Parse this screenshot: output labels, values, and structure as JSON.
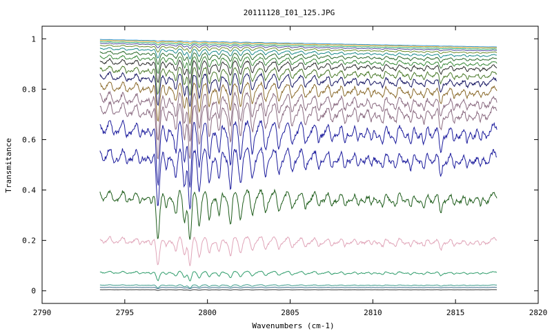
{
  "chart_data": {
    "type": "line",
    "title": "20111128_I01_125.JPG",
    "xlabel": "Wavenumbers (cm-1)",
    "ylabel": "Transmitance",
    "xlim": [
      2790,
      2820
    ],
    "ylim": [
      -0.05,
      1.05
    ],
    "x_ticks": [
      "2790",
      "2795",
      "2800",
      "2805",
      "2810",
      "2815",
      "2820"
    ],
    "y_ticks": [
      "0",
      "0.2",
      "0.4",
      "0.6",
      "0.8",
      "1"
    ],
    "x_tick_values": [
      2790,
      2795,
      2800,
      2805,
      2810,
      2815,
      2820
    ],
    "y_tick_values": [
      0,
      0.2,
      0.4,
      0.6,
      0.8,
      1
    ],
    "x_range": [
      2793.5,
      2817.5
    ],
    "grid": false,
    "legend": "none",
    "absorption_lines": [
      {
        "x": 2794.3,
        "depth": 0.18
      },
      {
        "x": 2795.1,
        "depth": 0.22
      },
      {
        "x": 2795.9,
        "depth": 0.25
      },
      {
        "x": 2796.6,
        "depth": 0.28
      },
      {
        "x": 2797.0,
        "depth": 0.85
      },
      {
        "x": 2797.5,
        "depth": 0.35
      },
      {
        "x": 2798.1,
        "depth": 0.42
      },
      {
        "x": 2798.6,
        "depth": 0.5
      },
      {
        "x": 2798.95,
        "depth": 1.0
      },
      {
        "x": 2799.5,
        "depth": 0.55
      },
      {
        "x": 2800.1,
        "depth": 0.55
      },
      {
        "x": 2800.7,
        "depth": 0.52
      },
      {
        "x": 2801.4,
        "depth": 0.6
      },
      {
        "x": 2802.0,
        "depth": 0.4
      },
      {
        "x": 2802.7,
        "depth": 0.35
      },
      {
        "x": 2803.5,
        "depth": 0.32
      },
      {
        "x": 2804.3,
        "depth": 0.3
      },
      {
        "x": 2805.1,
        "depth": 0.28
      },
      {
        "x": 2805.9,
        "depth": 0.27
      },
      {
        "x": 2806.7,
        "depth": 0.26
      },
      {
        "x": 2807.5,
        "depth": 0.28
      },
      {
        "x": 2808.3,
        "depth": 0.3
      },
      {
        "x": 2809.1,
        "depth": 0.27
      },
      {
        "x": 2809.9,
        "depth": 0.28
      },
      {
        "x": 2810.6,
        "depth": 0.3
      },
      {
        "x": 2811.4,
        "depth": 0.26
      },
      {
        "x": 2812.3,
        "depth": 0.33
      },
      {
        "x": 2813.1,
        "depth": 0.3
      },
      {
        "x": 2814.1,
        "depth": 0.42
      },
      {
        "x": 2814.9,
        "depth": 0.27
      },
      {
        "x": 2815.7,
        "depth": 0.28
      },
      {
        "x": 2816.5,
        "depth": 0.26
      }
    ],
    "series": [
      {
        "baseline": 0.005,
        "scale": 0.01,
        "color": "#333333"
      },
      {
        "baseline": 0.015,
        "scale": 0.02,
        "color": "#3c6b8a"
      },
      {
        "baseline": 0.025,
        "scale": 0.04,
        "color": "#3a9a8a"
      },
      {
        "baseline": 0.08,
        "scale": 0.12,
        "color": "#2e9c6a"
      },
      {
        "baseline": 0.22,
        "scale": 0.35,
        "color": "#e0a4b8"
      },
      {
        "baseline": 0.41,
        "scale": 0.62,
        "color": "#1d5c1a"
      },
      {
        "baseline": 0.58,
        "scale": 0.75,
        "color": "#1a1a9c"
      },
      {
        "baseline": 0.69,
        "scale": 0.8,
        "color": "#1a1a9c"
      },
      {
        "baseline": 0.76,
        "scale": 0.7,
        "color": "#8a6a80"
      },
      {
        "baseline": 0.8,
        "scale": 0.6,
        "color": "#8a6a80"
      },
      {
        "baseline": 0.84,
        "scale": 0.5,
        "color": "#8a6a2a"
      },
      {
        "baseline": 0.875,
        "scale": 0.42,
        "color": "#141460"
      },
      {
        "baseline": 0.9,
        "scale": 0.35,
        "color": "#4a7a2a"
      },
      {
        "baseline": 0.925,
        "scale": 0.28,
        "color": "#2a2a2a"
      },
      {
        "baseline": 0.94,
        "scale": 0.22,
        "color": "#3a8a3a"
      },
      {
        "baseline": 0.955,
        "scale": 0.16,
        "color": "#2a6a2a"
      },
      {
        "baseline": 0.968,
        "scale": 0.12,
        "color": "#1a8a8a"
      },
      {
        "baseline": 0.978,
        "scale": 0.08,
        "color": "#6a8a2a"
      },
      {
        "baseline": 0.985,
        "scale": 0.05,
        "color": "#4a4a9a"
      },
      {
        "baseline": 0.99,
        "scale": 0.03,
        "color": "#2aaa6a"
      },
      {
        "baseline": 0.995,
        "scale": 0.02,
        "color": "#d4a020"
      },
      {
        "baseline": 0.998,
        "scale": 0.01,
        "color": "#3a9ad4"
      }
    ]
  }
}
